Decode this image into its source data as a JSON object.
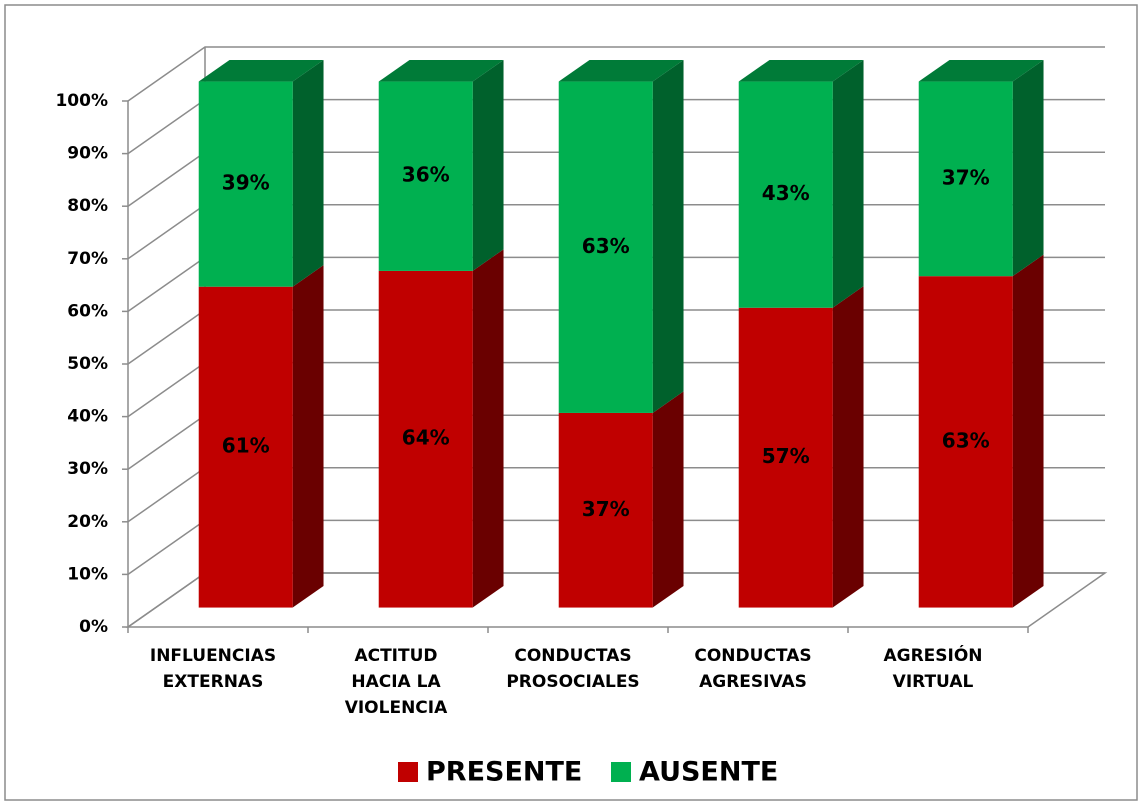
{
  "chart_data": {
    "type": "stacked_bar_3d",
    "categories": [
      "INFLUENCIAS EXTERNAS",
      "ACTITUD HACIA LA VIOLENCIA",
      "CONDUCTAS PROSOCIALES",
      "CONDUCTAS AGRESIVAS",
      "AGRESIÓN VIRTUAL"
    ],
    "series": [
      {
        "name": "PRESENTE",
        "color": "#c00000",
        "values": [
          61,
          64,
          37,
          57,
          63
        ],
        "value_labels": [
          "61%",
          "64%",
          "37%",
          "57%",
          "63%"
        ]
      },
      {
        "name": "AUSENTE",
        "color": "#00b050",
        "values": [
          39,
          36,
          63,
          43,
          37
        ],
        "value_labels": [
          "39%",
          "36%",
          "63%",
          "43%",
          "37%"
        ]
      }
    ],
    "ylim": [
      0,
      100
    ],
    "yticks": [
      {
        "value": 0,
        "label": "0%"
      },
      {
        "value": 10,
        "label": "10%"
      },
      {
        "value": 20,
        "label": "20%"
      },
      {
        "value": 30,
        "label": "30%"
      },
      {
        "value": 40,
        "label": "40%"
      },
      {
        "value": 50,
        "label": "50%"
      },
      {
        "value": 60,
        "label": "60%"
      },
      {
        "value": 70,
        "label": "70%"
      },
      {
        "value": 80,
        "label": "80%"
      },
      {
        "value": 90,
        "label": "90%"
      },
      {
        "value": 100,
        "label": "100%"
      }
    ],
    "grid": true,
    "legend": "bottom"
  }
}
